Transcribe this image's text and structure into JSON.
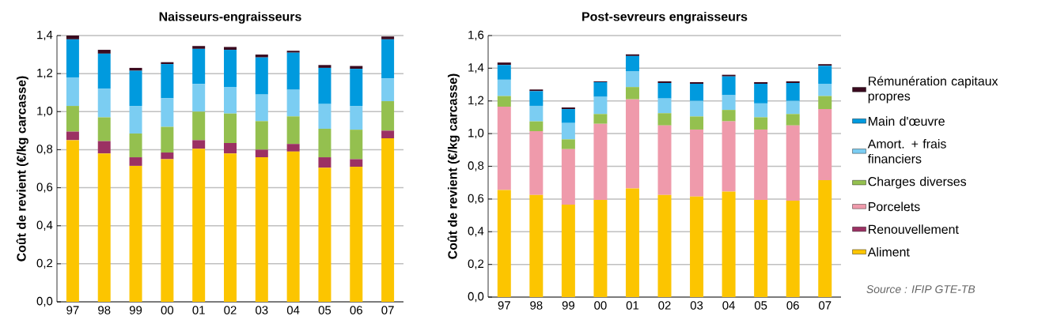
{
  "chart_data": [
    {
      "type": "bar",
      "stacked": true,
      "title": "Naisseurs-engraisseurs",
      "ylabel": "Coût de revient (€/kg carcasse)",
      "categories": [
        "97",
        "98",
        "99",
        "00",
        "01",
        "02",
        "03",
        "04",
        "05",
        "06",
        "07"
      ],
      "ylim": [
        0,
        1.4
      ],
      "yticks": [
        {
          "value": 0,
          "label": "0,0"
        },
        {
          "value": 0.2,
          "label": "0,2"
        },
        {
          "value": 0.4,
          "label": "0,4"
        },
        {
          "value": 0.6,
          "label": "0,6"
        },
        {
          "value": 0.8,
          "label": "0,8"
        },
        {
          "value": 1.0,
          "label": "1,0"
        },
        {
          "value": 1.2,
          "label": "1,2"
        },
        {
          "value": 1.4,
          "label": "1,4"
        }
      ],
      "grid": "y",
      "legend": false,
      "series": [
        {
          "color": "#fcc500",
          "values": [
            0.85,
            0.78,
            0.715,
            0.75,
            0.805,
            0.78,
            0.76,
            0.79,
            0.705,
            0.71,
            0.86
          ]
        },
        {
          "color": "#9b3163",
          "values": [
            0.045,
            0.065,
            0.045,
            0.035,
            0.045,
            0.055,
            0.04,
            0.04,
            0.055,
            0.04,
            0.04
          ]
        },
        {
          "color": "#94c04f",
          "values": [
            0.135,
            0.125,
            0.125,
            0.135,
            0.15,
            0.155,
            0.15,
            0.145,
            0.15,
            0.155,
            0.155
          ]
        },
        {
          "color": "#7bcdf2",
          "values": [
            0.15,
            0.15,
            0.145,
            0.15,
            0.145,
            0.14,
            0.14,
            0.14,
            0.13,
            0.125,
            0.12
          ]
        },
        {
          "color": "#009ade",
          "values": [
            0.2,
            0.185,
            0.185,
            0.18,
            0.185,
            0.195,
            0.195,
            0.195,
            0.19,
            0.195,
            0.205
          ]
        },
        {
          "color": "#3a0a1f",
          "values": [
            0.02,
            0.02,
            0.015,
            0.01,
            0.015,
            0.015,
            0.015,
            0.01,
            0.015,
            0.015,
            0.015
          ]
        }
      ]
    },
    {
      "type": "bar",
      "stacked": true,
      "title": "Post-sevreurs engraisseurs",
      "ylabel": "Coût de revient (€/kg carcasse)",
      "categories": [
        "97",
        "98",
        "99",
        "00",
        "01",
        "02",
        "03",
        "04",
        "05",
        "06",
        "07"
      ],
      "ylim": [
        0,
        1.6
      ],
      "yticks": [
        {
          "value": 0,
          "label": "0,0"
        },
        {
          "value": 0.2,
          "label": "0,2"
        },
        {
          "value": 0.4,
          "label": "0,4"
        },
        {
          "value": 0.6,
          "label": "0,6"
        },
        {
          "value": 0.8,
          "label": "0,8"
        },
        {
          "value": 1.0,
          "label": "1,0"
        },
        {
          "value": 1.2,
          "label": "1,2"
        },
        {
          "value": 1.4,
          "label": "1,4"
        },
        {
          "value": 1.6,
          "label": "1,6"
        }
      ],
      "grid": "y",
      "legend": "right",
      "annotations": [
        "Source : IFIP GTE-TB"
      ],
      "series": [
        {
          "name": "Aliment",
          "color": "#fcc500",
          "values": [
            0.655,
            0.625,
            0.565,
            0.595,
            0.665,
            0.625,
            0.615,
            0.645,
            0.595,
            0.59,
            0.715
          ]
        },
        {
          "name": "Renouvellement",
          "color": "#9b3163",
          "values": [
            null,
            null,
            null,
            null,
            null,
            null,
            null,
            null,
            null,
            null,
            null
          ]
        },
        {
          "name": "Porcelets",
          "color": "#ef9aab",
          "values": [
            0.51,
            0.39,
            0.34,
            0.465,
            0.545,
            0.425,
            0.41,
            0.43,
            0.43,
            0.46,
            0.435
          ]
        },
        {
          "name": "Charges diverses",
          "color": "#94c04f",
          "values": [
            0.065,
            0.06,
            0.06,
            0.06,
            0.075,
            0.075,
            0.08,
            0.07,
            0.075,
            0.07,
            0.08
          ]
        },
        {
          "name": "Amort. + frais financiers",
          "color": "#7bcdf2",
          "values": [
            0.1,
            0.095,
            0.1,
            0.105,
            0.095,
            0.09,
            0.095,
            0.09,
            0.085,
            0.08,
            0.075
          ]
        },
        {
          "name": "Main d'œuvre",
          "color": "#009ade",
          "values": [
            0.09,
            0.09,
            0.085,
            0.09,
            0.095,
            0.095,
            0.105,
            0.115,
            0.12,
            0.11,
            0.11
          ]
        },
        {
          "name": "Rémunération capitaux propres",
          "color": "#3a0a1f",
          "values": [
            0.015,
            0.01,
            0.01,
            0.005,
            0.01,
            0.01,
            0.01,
            0.01,
            0.01,
            0.01,
            0.01
          ]
        }
      ]
    }
  ]
}
